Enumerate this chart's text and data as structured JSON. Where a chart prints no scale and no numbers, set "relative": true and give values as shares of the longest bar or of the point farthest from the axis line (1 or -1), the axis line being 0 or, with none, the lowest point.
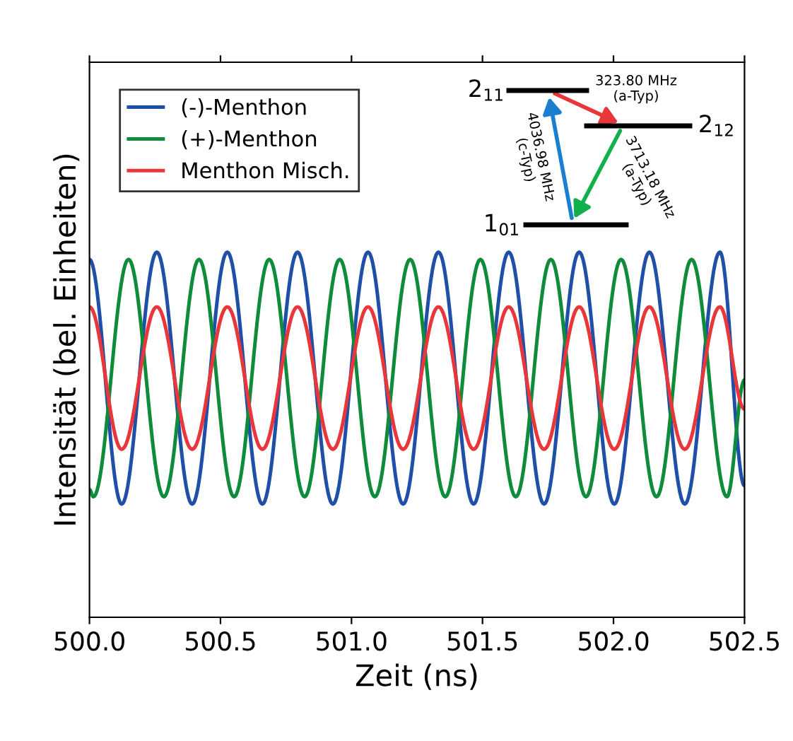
{
  "chart_data": {
    "type": "line",
    "relative": true,
    "xlabel": "Zeit (ns)",
    "ylabel": "Intensität (bel. Einheiten)",
    "xlim": [
      500.0,
      502.5
    ],
    "xticks": [
      {
        "value": 500.0,
        "label": "500.0"
      },
      {
        "value": 500.5,
        "label": "500.5"
      },
      {
        "value": 501.0,
        "label": "501.0"
      },
      {
        "value": 501.5,
        "label": "501.5"
      },
      {
        "value": 502.0,
        "label": "502.0"
      },
      {
        "value": 502.5,
        "label": "502.5"
      }
    ],
    "legend": "top left",
    "grid": false,
    "marker": "none",
    "line_style": "solid",
    "series": [
      {
        "name": "(-)-Menthon",
        "color": "#1f4fa6",
        "x": [
          500.0,
          500.123,
          500.257,
          500.392,
          500.526,
          500.66,
          500.794,
          500.929,
          501.063,
          501.197,
          501.332,
          501.466,
          501.6,
          501.735,
          501.869,
          502.003,
          502.137,
          502.272,
          502.406,
          502.5
        ],
        "values": [
          0.98,
          0.31,
          1.0,
          0.31,
          1.0,
          0.31,
          1.0,
          0.31,
          1.0,
          0.31,
          1.0,
          0.31,
          1.0,
          0.31,
          1.0,
          0.31,
          1.0,
          0.31,
          1.0,
          0.36
        ]
      },
      {
        "name": "(+)-Menthon",
        "color": "#0e8c3c",
        "x": [
          500.0,
          500.015,
          500.149,
          500.284,
          500.418,
          500.552,
          500.686,
          500.821,
          500.955,
          501.089,
          501.224,
          501.358,
          501.492,
          501.627,
          501.761,
          501.895,
          502.029,
          502.164,
          502.298,
          502.433,
          502.5
        ],
        "values": [
          0.35,
          0.33,
          0.98,
          0.33,
          0.98,
          0.33,
          0.98,
          0.33,
          0.98,
          0.33,
          0.98,
          0.33,
          0.98,
          0.33,
          0.98,
          0.33,
          0.98,
          0.33,
          0.98,
          0.33,
          0.65
        ]
      },
      {
        "name": "Menthon Misch.",
        "color": "#e8363a",
        "x": [
          500.0,
          500.123,
          500.257,
          500.392,
          500.526,
          500.66,
          500.794,
          500.929,
          501.063,
          501.197,
          501.332,
          501.466,
          501.6,
          501.735,
          501.869,
          502.003,
          502.137,
          502.272,
          502.406,
          502.5
        ],
        "values": [
          0.85,
          0.46,
          0.85,
          0.46,
          0.85,
          0.46,
          0.85,
          0.46,
          0.85,
          0.46,
          0.85,
          0.46,
          0.85,
          0.46,
          0.85,
          0.46,
          0.85,
          0.46,
          0.85,
          0.57
        ]
      }
    ],
    "annotations": [
      "2$_{11}$",
      "2$_{12}$",
      "1$_{01}$",
      "323.80 MHz\n(a-Typ)",
      "4036.98 MHz\n(c-Typ)",
      "3713.18 MHz\n(a-Typ)"
    ]
  }
}
